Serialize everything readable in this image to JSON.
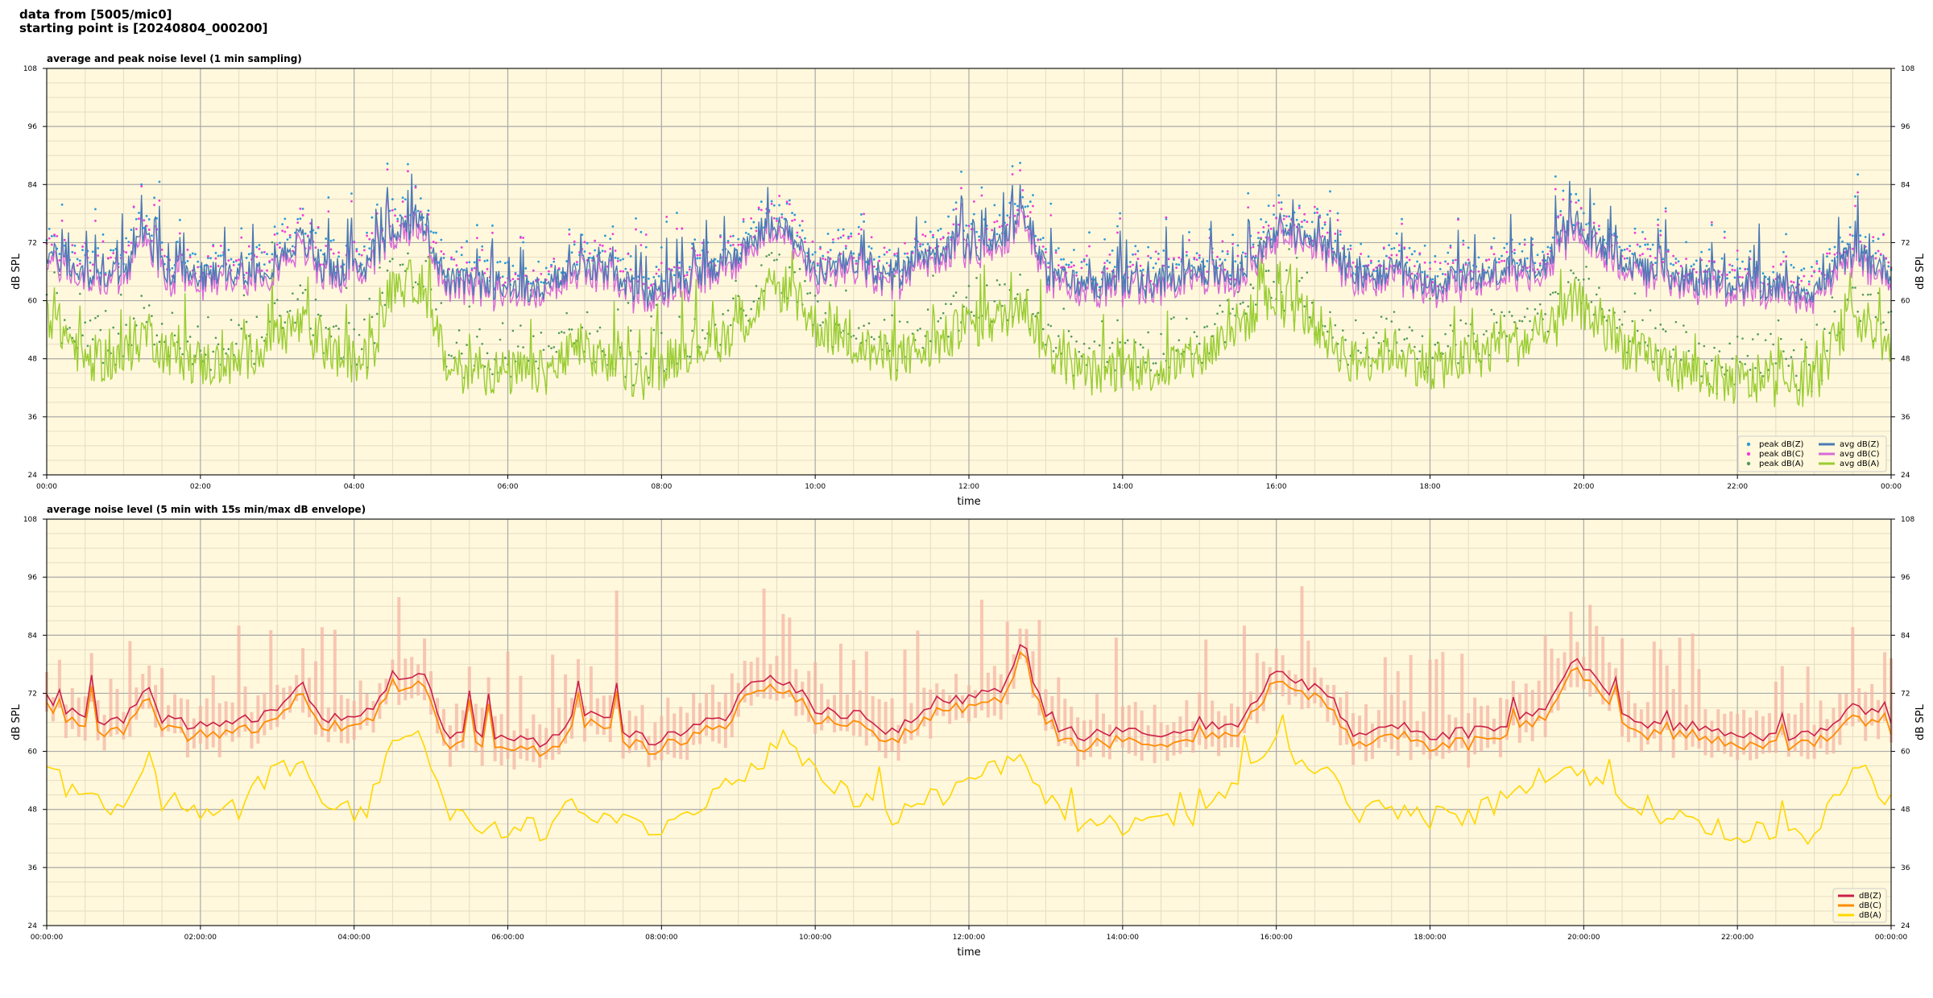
{
  "header": {
    "line1": "data from [5005/mic0]",
    "line2": "starting point is [20240804_000200]"
  },
  "colors": {
    "plot_bg": "#fff8dc",
    "major_grid": "#a9a9a9",
    "minor_grid": "#e6dcc4",
    "peak_z": "#2b9ad6",
    "peak_c": "#f03cd8",
    "peak_a": "#4e9a56",
    "avg_z": "#4a7ab5",
    "avg_c": "#d86ad8",
    "avg_a": "#9acd32",
    "db_z": "#cc1f4a",
    "db_c": "#ff8c00",
    "db_a": "#ffd700",
    "envelope": "#f4b6a4"
  },
  "chart_data": [
    {
      "type": "line",
      "title": "average and peak noise level (1 min sampling)",
      "xlabel": "time",
      "ylabel": "dB SPL",
      "ylim": [
        24,
        108
      ],
      "yticks": [
        24,
        36,
        48,
        60,
        72,
        84,
        96,
        108
      ],
      "xlim_hours": [
        0,
        24
      ],
      "xtick_labels": [
        "00:00",
        "02:00",
        "04:00",
        "06:00",
        "08:00",
        "10:00",
        "12:00",
        "14:00",
        "16:00",
        "18:00",
        "20:00",
        "22:00",
        "00:00"
      ],
      "grid": true,
      "legend_position": "lower-right",
      "legend": [
        "peak dB(Z)",
        "peak dB(C)",
        "peak dB(A)",
        "avg dB(Z)",
        "avg dB(C)",
        "avg dB(A)"
      ],
      "key_points_hours": [
        0,
        0.5,
        1,
        1.3,
        1.5,
        2,
        2.5,
        2.9,
        3.3,
        3.6,
        4,
        4.2,
        4.5,
        4.9,
        5.2,
        6,
        6.5,
        6.9,
        7.3,
        7.8,
        8.3,
        8.8,
        9.2,
        9.6,
        10,
        10.5,
        11,
        11.5,
        12,
        12.4,
        12.7,
        13,
        13.5,
        14,
        14.5,
        15,
        15.5,
        16,
        16.4,
        16.7,
        17,
        17.5,
        18,
        18.5,
        19,
        19.5,
        19.9,
        20.3,
        20.8,
        21.5,
        22,
        22.5,
        23,
        23.5,
        24
      ],
      "key_avg_z": [
        70,
        65,
        66,
        74,
        66,
        65,
        66,
        67,
        73,
        66,
        66,
        67,
        75,
        76,
        64,
        63,
        62,
        67,
        66,
        61,
        64,
        67,
        73,
        76,
        66,
        68,
        64,
        70,
        71,
        72,
        78,
        66,
        63,
        64,
        63,
        66,
        65,
        74,
        73,
        70,
        64,
        66,
        63,
        65,
        66,
        68,
        76,
        70,
        66,
        64,
        63,
        63,
        62,
        70,
        66
      ],
      "key_avg_a": [
        58,
        48,
        48,
        54,
        50,
        47,
        47,
        52,
        55,
        50,
        47,
        48,
        63,
        64,
        46,
        45,
        45,
        50,
        47,
        44,
        50,
        52,
        58,
        63,
        55,
        51,
        48,
        50,
        55,
        56,
        60,
        50,
        45,
        46,
        46,
        48,
        55,
        60,
        57,
        52,
        47,
        50,
        46,
        48,
        51,
        52,
        60,
        53,
        48,
        45,
        43,
        43,
        43,
        58,
        50
      ]
    },
    {
      "type": "line",
      "title": "average noise level (5 min with 15s min/max dB envelope)",
      "xlabel": "time",
      "ylabel": "dB SPL",
      "ylim": [
        24,
        108
      ],
      "yticks": [
        24,
        36,
        48,
        60,
        72,
        84,
        96,
        108
      ],
      "xlim_hours": [
        0,
        24
      ],
      "xtick_labels": [
        "00:00:00",
        "02:00:00",
        "04:00:00",
        "06:00:00",
        "08:00:00",
        "10:00:00",
        "12:00:00",
        "14:00:00",
        "16:00:00",
        "18:00:00",
        "20:00:00",
        "22:00:00",
        "00:00:00"
      ],
      "grid": true,
      "legend_position": "lower-right",
      "legend": [
        "dB(Z)",
        "dB(C)",
        "dB(A)"
      ],
      "key_points_hours": [
        0,
        0.5,
        1,
        1.3,
        1.5,
        2,
        2.5,
        2.9,
        3.3,
        3.6,
        4,
        4.2,
        4.5,
        4.9,
        5.2,
        6,
        6.5,
        6.9,
        7.3,
        7.8,
        8.3,
        8.8,
        9.2,
        9.6,
        10,
        10.5,
        11,
        11.5,
        12,
        12.4,
        12.7,
        13,
        13.5,
        14,
        14.5,
        15,
        15.5,
        16,
        16.4,
        16.7,
        17,
        17.5,
        18,
        18.5,
        19,
        19.5,
        19.9,
        20.3,
        20.8,
        21.5,
        22,
        22.5,
        23,
        23.5,
        24
      ],
      "key_db_z": [
        71,
        66,
        66,
        74,
        67,
        65,
        66,
        68,
        74,
        67,
        66,
        68,
        76,
        76,
        64,
        63,
        62,
        68,
        67,
        62,
        64,
        67,
        74,
        75,
        68,
        68,
        64,
        70,
        71,
        72,
        83,
        66,
        63,
        64,
        63,
        66,
        65,
        77,
        74,
        72,
        63,
        66,
        63,
        64,
        66,
        68,
        80,
        71,
        66,
        65,
        63,
        63,
        63,
        70,
        66
      ],
      "key_db_a": [
        57,
        49,
        49,
        59,
        50,
        48,
        48,
        56,
        58,
        50,
        48,
        49,
        63,
        64,
        46,
        44,
        44,
        49,
        46,
        43,
        48,
        52,
        57,
        63,
        57,
        50,
        47,
        49,
        56,
        56,
        58,
        50,
        44,
        45,
        45,
        47,
        53,
        63,
        56,
        57,
        47,
        49,
        46,
        47,
        50,
        55,
        57,
        53,
        48,
        46,
        43,
        43,
        43,
        57,
        50
      ]
    }
  ]
}
